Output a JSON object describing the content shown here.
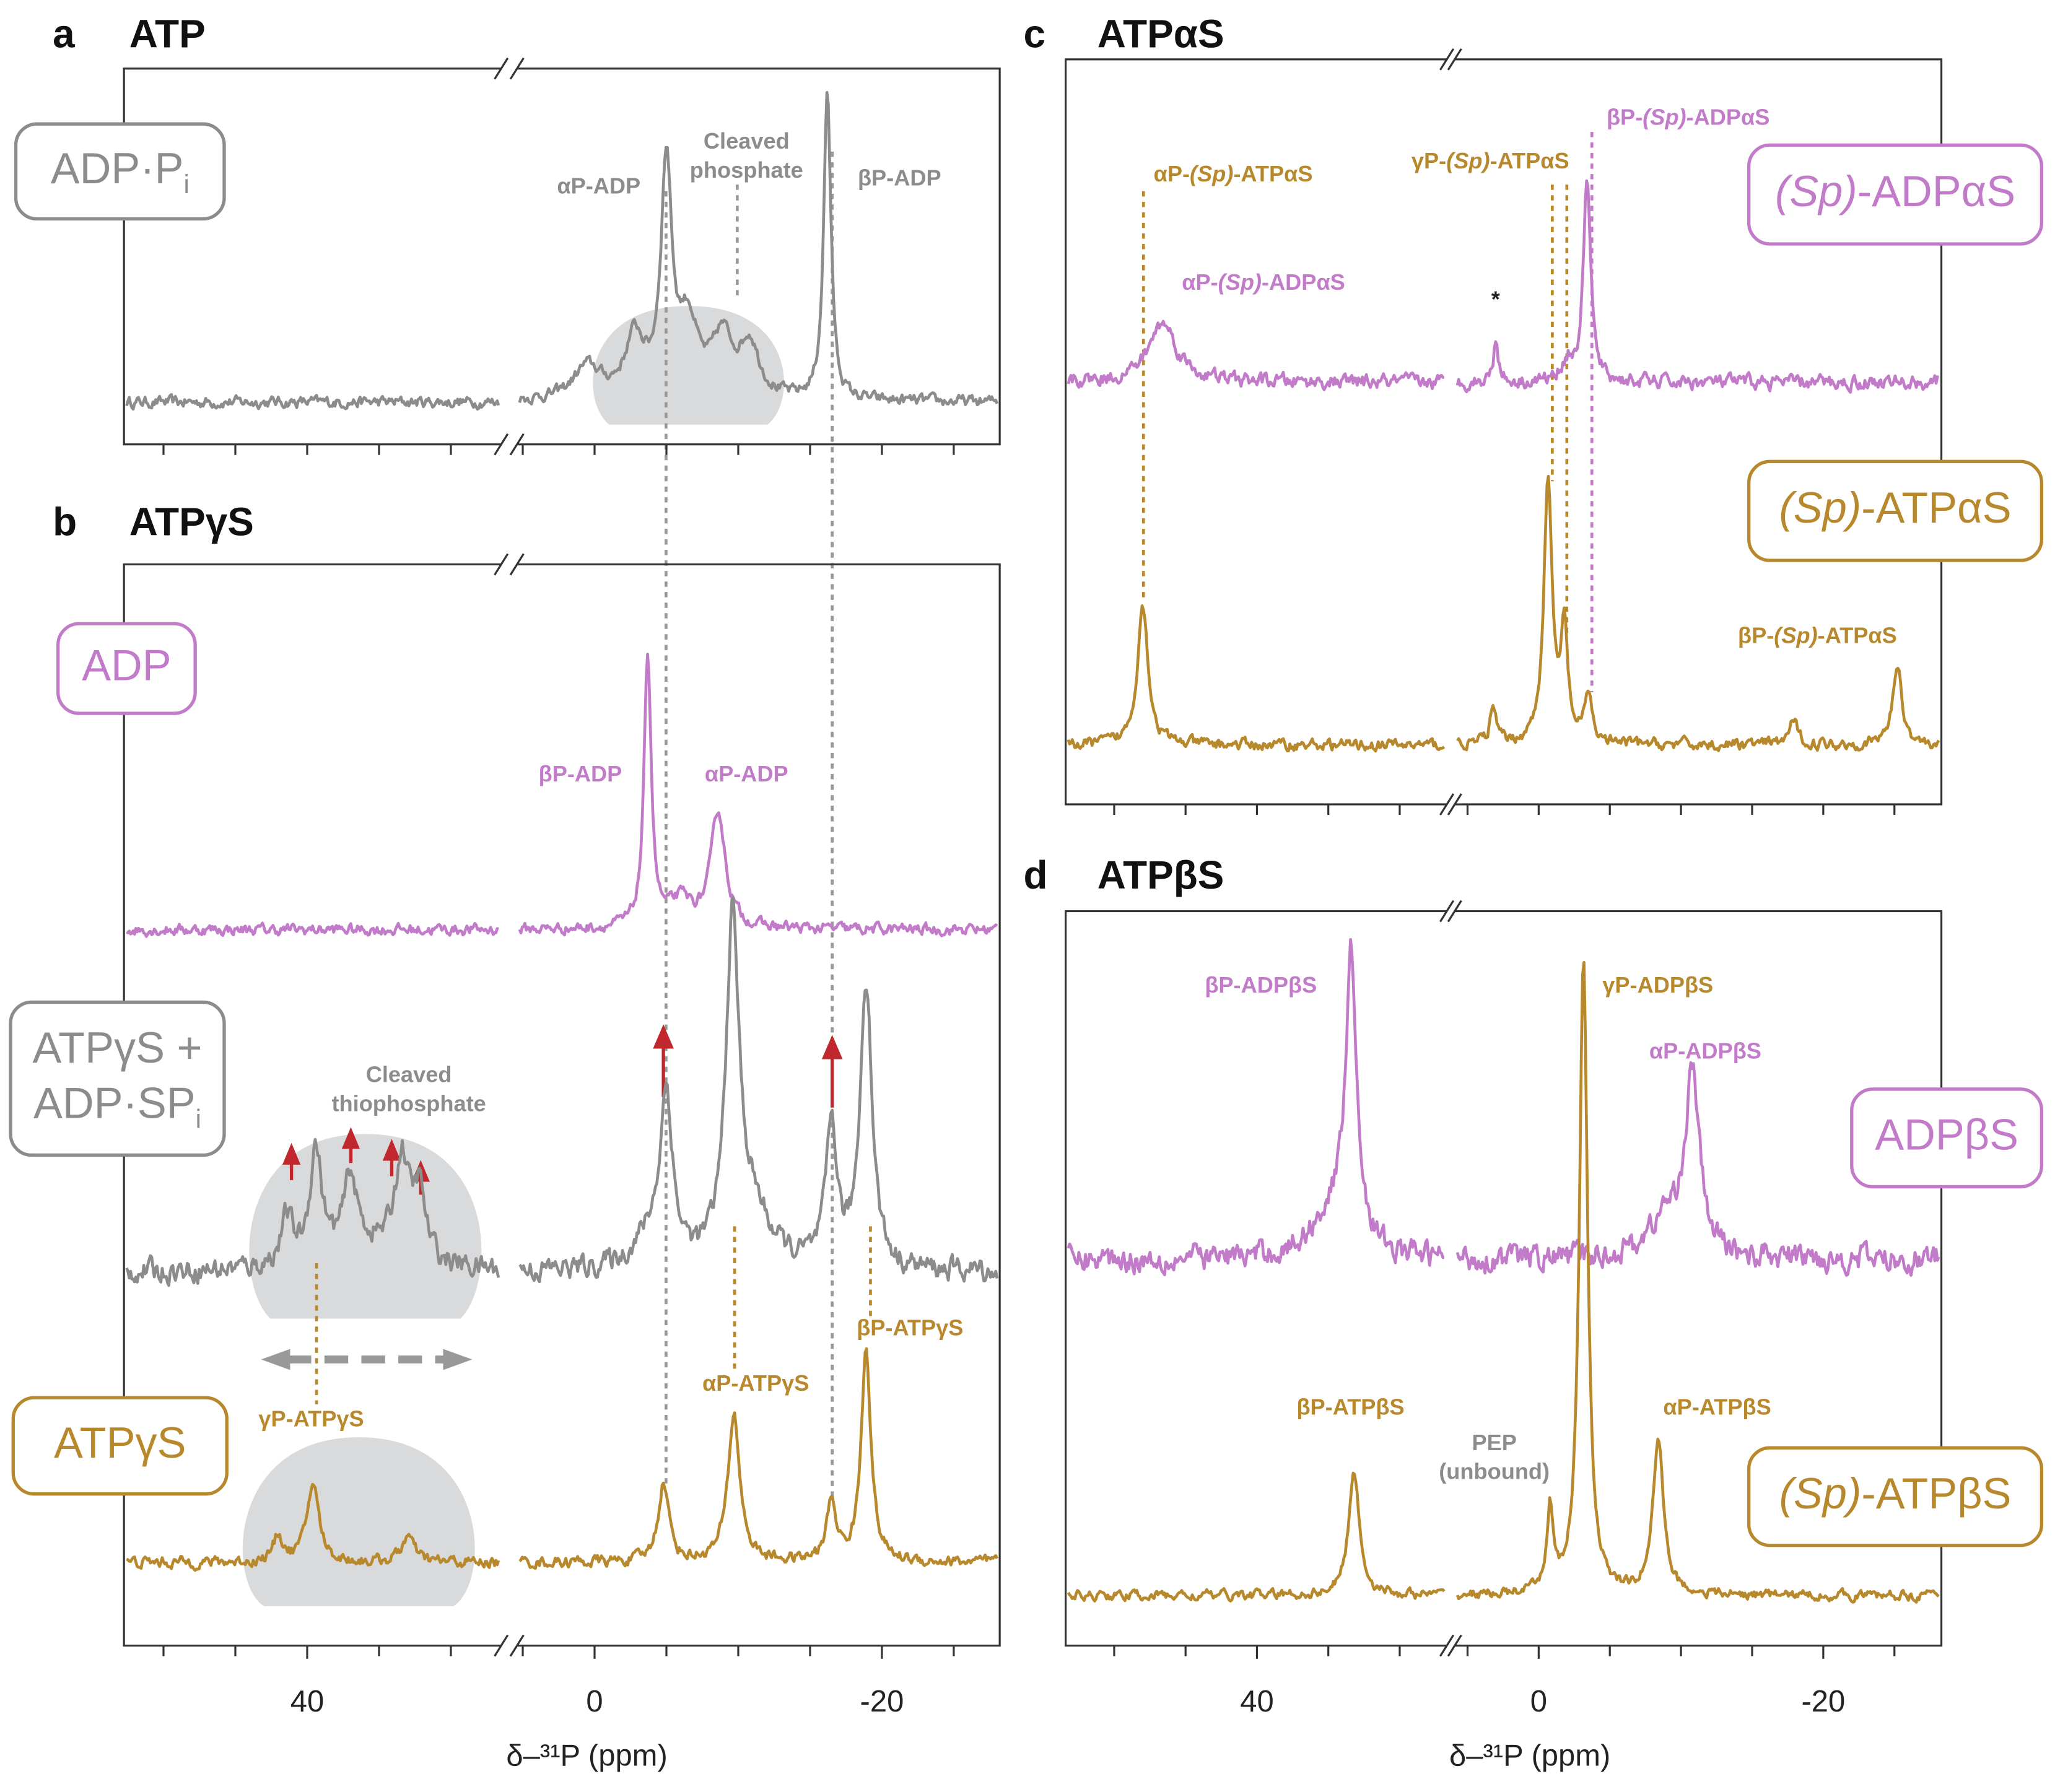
{
  "chart_data": [
    {
      "type": "spectrum",
      "letter": "a",
      "title": "ATP",
      "xlim": [
        [
          52.75,
          26.5
        ],
        [
          5.4,
          -28.2
        ]
      ],
      "xminor_ticks": [
        50,
        45,
        40,
        35,
        30,
        5,
        0,
        -5,
        -10,
        -15,
        -20,
        -25
      ],
      "series": [
        {
          "name": [
            [
              {
                "text": "ADP·P"
              },
              {
                "text": "i",
                "style": "sub"
              }
            ]
          ],
          "color": "#8c8c8c",
          "peaks": [
            [
              -5,
              175,
              0.45
            ],
            [
              -16.2,
              235,
              0.3
            ],
            [
              -2.8,
              45,
              0.8
            ],
            [
              -6.5,
              55,
              0.8
            ],
            [
              -8.9,
              45,
              0.9
            ],
            [
              -10.8,
              40,
              0.8
            ],
            [
              0.5,
              25,
              1.2
            ]
          ]
        }
      ],
      "annotations": [
        {
          "text": [
            [
              {
                "text": "αP-ADP"
              }
            ]
          ],
          "color": "#8c8c8c"
        },
        {
          "text": [
            [
              {
                "text": "Cleaved"
              }
            ],
            [
              {
                "text": "phosphate"
              }
            ]
          ],
          "color": "#8c8c8c"
        },
        {
          "text": [
            [
              {
                "text": "βP-ADP"
              }
            ]
          ],
          "color": "#8c8c8c"
        }
      ]
    },
    {
      "type": "spectrum",
      "letter": "b",
      "title": "ATPγS",
      "xlabel": "δ–³¹P (ppm)",
      "xlim": [
        [
          52.75,
          26.5
        ],
        [
          5.4,
          -28.2
        ]
      ],
      "xticks": [
        40,
        0,
        -20
      ],
      "xminor_ticks": [
        50,
        45,
        35,
        30,
        5,
        -5,
        -10,
        -15,
        -25
      ],
      "series": [
        {
          "name": [
            [
              {
                "text": "ADP"
              }
            ]
          ],
          "color": "#c17bc9",
          "peaks": [
            [
              -3.7,
              207,
              0.3
            ],
            [
              -8.6,
              88,
              0.6
            ],
            [
              -6,
              20,
              1
            ]
          ]
        },
        {
          "name": [
            [
              {
                "text": "ATPγS +"
              }
            ],
            [
              {
                "text": "ADP·SP"
              },
              {
                "text": "i",
                "style": "sub"
              }
            ]
          ],
          "color": "#8c8c8c",
          "peaks": [
            [
              41.4,
              35,
              0.5
            ],
            [
              39.4,
              85,
              0.5
            ],
            [
              37,
              55,
              0.5
            ],
            [
              33.4,
              75,
              0.6
            ],
            [
              32.2,
              50,
              0.5
            ],
            [
              36,
              20,
              3
            ],
            [
              -5,
              120,
              0.5
            ],
            [
              -9.6,
              253,
              0.55
            ],
            [
              -16.5,
              107,
              0.45
            ],
            [
              -18.9,
              219,
              0.5
            ],
            [
              -4,
              25,
              1.5
            ],
            [
              -11,
              40,
              1.5
            ]
          ]
        },
        {
          "name": [
            [
              {
                "text": "ATPγS"
              }
            ]
          ],
          "color": "#b8892c",
          "peaks": [
            [
              39.6,
              60,
              0.5
            ],
            [
              42,
              20,
              0.4
            ],
            [
              33,
              20,
              0.5
            ],
            [
              -4.8,
              60,
              0.45
            ],
            [
              -9.7,
              112,
              0.5
            ],
            [
              -16.5,
              45,
              0.4
            ],
            [
              -18.9,
              163,
              0.4
            ]
          ]
        }
      ],
      "annotations": [
        {
          "text": [
            [
              {
                "text": "βP-ADP"
              }
            ]
          ],
          "color": "#c17bc9"
        },
        {
          "text": [
            [
              {
                "text": "αP-ADP"
              }
            ]
          ],
          "color": "#c17bc9"
        },
        {
          "text": [
            [
              {
                "text": "Cleaved"
              }
            ],
            [
              {
                "text": "thiophosphate"
              }
            ]
          ],
          "color": "#8c8c8c"
        },
        {
          "text": [
            [
              {
                "text": "γP-ATPγS"
              }
            ]
          ],
          "color": "#b8892c"
        },
        {
          "text": [
            [
              {
                "text": "αP-ATPγS"
              }
            ]
          ],
          "color": "#b8892c"
        },
        {
          "text": [
            [
              {
                "text": "βP-ATPγS"
              }
            ]
          ],
          "color": "#b8892c"
        }
      ]
    },
    {
      "type": "spectrum",
      "letter": "c",
      "title": "ATPαS",
      "xlim": [
        [
          53.4,
          26.7
        ],
        [
          5.9,
          -28.3
        ]
      ],
      "xminor_ticks": [
        50,
        45,
        40,
        35,
        30,
        5,
        0,
        -5,
        -10,
        -15,
        -20,
        -25
      ],
      "series": [
        {
          "name": [
            [
              {
                "text": "(Sp)",
                "style": "italic"
              },
              {
                "text": "-ADPαS"
              }
            ]
          ],
          "color": "#c17bc9",
          "peaks": [
            [
              46.6,
              45,
              1.2
            ],
            [
              3.0,
              35,
              0.2
            ],
            [
              -3.4,
              155,
              0.3
            ],
            [
              -2,
              15,
              0.5
            ]
          ]
        },
        {
          "name": [
            [
              {
                "text": "(Sp)",
                "style": "italic"
              },
              {
                "text": "-ATPαS"
              }
            ]
          ],
          "color": "#b8892c",
          "peaks": [
            [
              48,
              107,
              0.45
            ],
            [
              -0.65,
              198,
              0.35
            ],
            [
              -1.8,
              82,
              0.3
            ],
            [
              -3.5,
              37,
              0.3
            ],
            [
              3.2,
              25,
              0.3
            ],
            [
              -25.2,
              60,
              0.4
            ],
            [
              -17.9,
              17,
              0.4
            ]
          ]
        }
      ],
      "annotations": [
        {
          "text": [
            [
              {
                "text": "αP-"
              },
              {
                "text": "(Sp)",
                "style": "italic"
              },
              {
                "text": "-ATPαS"
              }
            ]
          ],
          "color": "#b8892c"
        },
        {
          "text": [
            [
              {
                "text": "γP-"
              },
              {
                "text": "(Sp)",
                "style": "italic"
              },
              {
                "text": "-ATPαS"
              }
            ]
          ],
          "color": "#b8892c"
        },
        {
          "text": [
            [
              {
                "text": "βP-"
              },
              {
                "text": "(Sp)",
                "style": "italic"
              },
              {
                "text": "-ADPαS"
              }
            ]
          ],
          "color": "#c17bc9"
        },
        {
          "text": [
            [
              {
                "text": "αP-"
              },
              {
                "text": "(Sp)",
                "style": "italic"
              },
              {
                "text": "-ADPαS"
              }
            ]
          ],
          "color": "#c17bc9"
        },
        {
          "text": [
            [
              {
                "text": "*"
              }
            ]
          ],
          "color": "#222222"
        },
        {
          "text": [
            [
              {
                "text": "βP-"
              },
              {
                "text": "(Sp)",
                "style": "italic"
              },
              {
                "text": "-ATPαS"
              }
            ]
          ],
          "color": "#b8892c"
        }
      ]
    },
    {
      "type": "spectrum",
      "letter": "d",
      "title": "ATPβS",
      "xlabel": "δ–³¹P (ppm)",
      "xlim": [
        [
          53.4,
          26.7
        ],
        [
          5.9,
          -28.3
        ]
      ],
      "xticks": [
        40,
        0,
        -20
      ],
      "xminor_ticks": [
        50,
        45,
        35,
        30,
        5,
        -5,
        -10,
        -15,
        -25
      ],
      "series": [
        {
          "name": [
            [
              {
                "text": "ADPβS"
              }
            ]
          ],
          "color": "#c17bc9",
          "peaks": [
            [
              33.4,
              222,
              0.5
            ],
            [
              -10.8,
              133,
              0.6
            ],
            [
              35,
              30,
              1.5
            ],
            [
              -9,
              30,
              1.5
            ]
          ]
        },
        {
          "name": [
            [
              {
                "text": "(Sp)",
                "style": "italic"
              },
              {
                "text": "-ATPβS"
              }
            ]
          ],
          "color": "#b8892c",
          "peaks": [
            [
              33.2,
              95,
              0.45
            ],
            [
              -3.15,
              482,
              0.35
            ],
            [
              -0.8,
              65,
              0.25
            ],
            [
              -8.4,
              117,
              0.45
            ]
          ]
        }
      ],
      "annotations": [
        {
          "text": [
            [
              {
                "text": "βP-ADPβS"
              }
            ]
          ],
          "color": "#c17bc9"
        },
        {
          "text": [
            [
              {
                "text": "γP-ADPβS"
              }
            ]
          ],
          "color": "#b8892c"
        },
        {
          "text": [
            [
              {
                "text": "αP-ADPβS"
              }
            ]
          ],
          "color": "#c17bc9"
        },
        {
          "text": [
            [
              {
                "text": "βP-ATPβS"
              }
            ]
          ],
          "color": "#b8892c"
        },
        {
          "text": [
            [
              {
                "text": "PEP"
              }
            ],
            [
              {
                "text": "(unbound)"
              }
            ]
          ],
          "color": "#8c8c8c"
        },
        {
          "text": [
            [
              {
                "text": "αP-ATPβS"
              }
            ]
          ],
          "color": "#b8892c"
        }
      ]
    }
  ]
}
